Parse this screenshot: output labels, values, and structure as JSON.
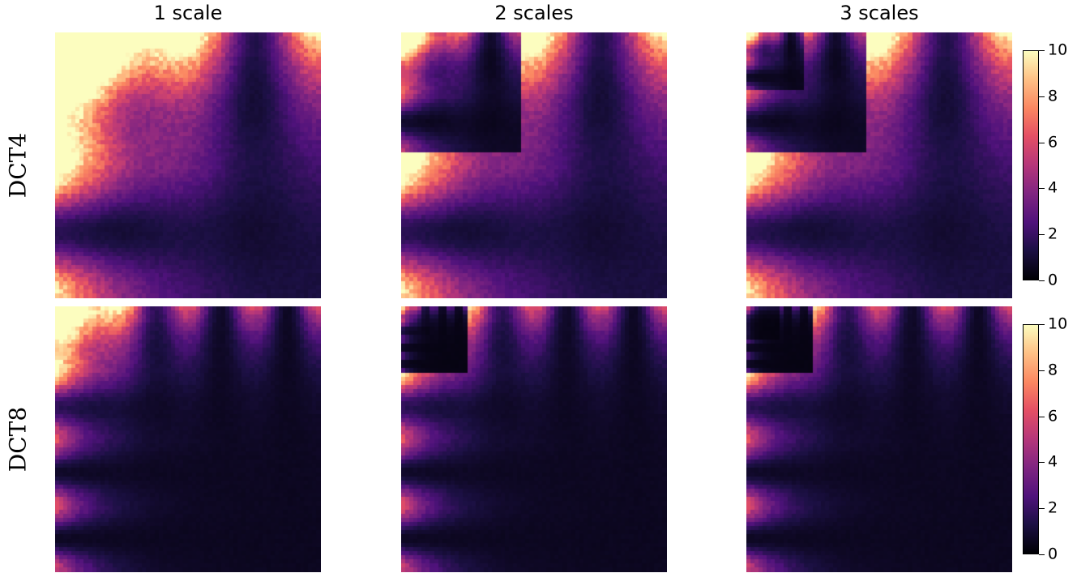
{
  "chart_data": {
    "type": "heatmap",
    "columns": [
      "1 scale",
      "2 scales",
      "3 scales"
    ],
    "rows": [
      "DCT4",
      "DCT8"
    ],
    "colormap": "magma",
    "clim": [
      0,
      10
    ],
    "colorbar": {
      "ticks": [
        "0",
        "2",
        "4",
        "6",
        "8",
        "10"
      ],
      "placement": "right"
    },
    "panels": [
      {
        "row": "DCT4",
        "column": "1 scale",
        "basis_size": 4,
        "scales": 1
      },
      {
        "row": "DCT4",
        "column": "2 scales",
        "basis_size": 4,
        "scales": 2
      },
      {
        "row": "DCT4",
        "column": "3 scales",
        "basis_size": 4,
        "scales": 3
      },
      {
        "row": "DCT8",
        "column": "1 scale",
        "basis_size": 8,
        "scales": 1
      },
      {
        "row": "DCT8",
        "column": "2 scales",
        "basis_size": 8,
        "scales": 2
      },
      {
        "row": "DCT8",
        "column": "3 scales",
        "basis_size": 8,
        "scales": 3
      }
    ]
  }
}
